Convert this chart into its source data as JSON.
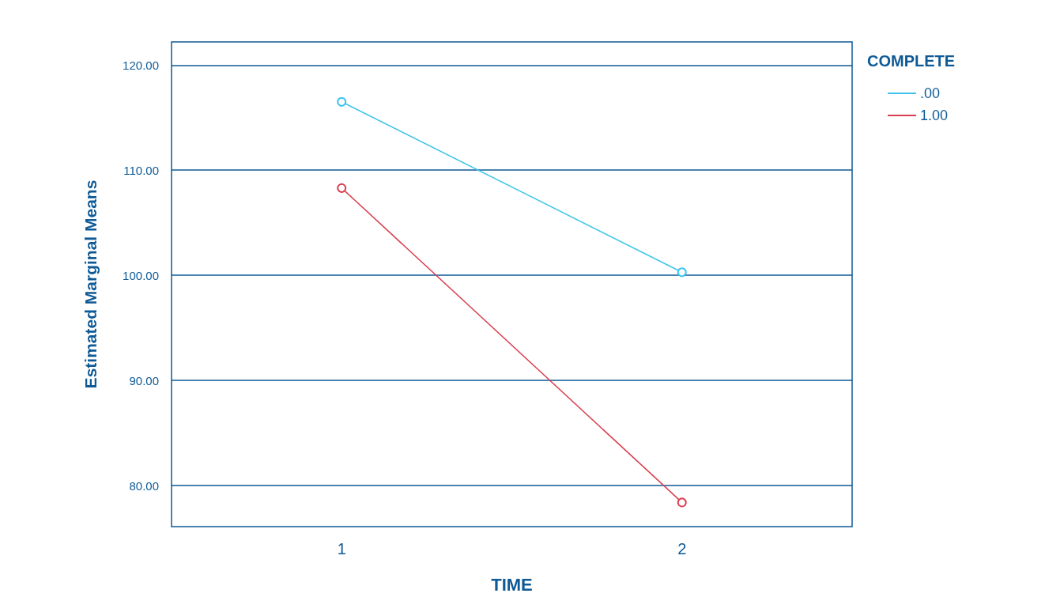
{
  "chart_data": {
    "type": "line",
    "xlabel": "TIME",
    "ylabel": "Estimated Marginal Means",
    "legend_title": "COMPLETE",
    "categories": [
      "1",
      "2"
    ],
    "series": [
      {
        "name": ".00",
        "color": "#3fc3ef",
        "values": [
          116.5,
          100.3
        ]
      },
      {
        "name": "1.00",
        "color": "#d9404f",
        "values": [
          108.3,
          78.4
        ]
      }
    ],
    "ylim": [
      76.1,
      122.2
    ],
    "yticks": [
      {
        "value": 80,
        "label": "80.00"
      },
      {
        "value": 90,
        "label": "90.00"
      },
      {
        "value": 100,
        "label": "100.00"
      },
      {
        "value": 110,
        "label": "110.00"
      },
      {
        "value": 120,
        "label": "120.00"
      }
    ],
    "grid": "y",
    "legend": "top right",
    "marker": "circle",
    "line_style": "solid"
  }
}
